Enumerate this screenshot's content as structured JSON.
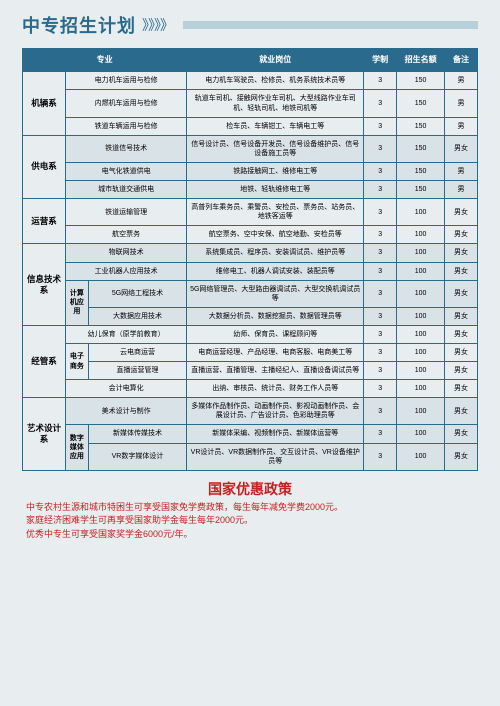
{
  "header": {
    "title": "中专招生计划",
    "arrows": "》》》》"
  },
  "columns": {
    "major": "专业",
    "job": "就业岗位",
    "duration": "学制",
    "quota": "招生名额",
    "note": "备注"
  },
  "depts": [
    {
      "name": "机辆系",
      "rows": [
        {
          "major": "电力机车运用与检修",
          "job": "电力机车驾驶员、检修员、机务系统技术员等",
          "dur": "3",
          "quota": "150",
          "note": "男",
          "gray": false
        },
        {
          "major": "内燃机车运用与检修",
          "job": "轨道车司机、接触网作业车司机、大型线路作业车司机、轻轨司机、地铁司机等",
          "dur": "3",
          "quota": "150",
          "note": "男",
          "gray": false
        },
        {
          "major": "铁道车辆运用与检修",
          "job": "检车员、车辆钳工、车辆电工等",
          "dur": "3",
          "quota": "150",
          "note": "男",
          "gray": false
        }
      ]
    },
    {
      "name": "供电系",
      "rows": [
        {
          "major": "铁道信号技术",
          "job": "信号设计员、信号设备开发员、信号设备维护员、信号设备施工员等",
          "dur": "3",
          "quota": "150",
          "note": "男女",
          "gray": true
        },
        {
          "major": "电气化铁道供电",
          "job": "铁路接触网工、维修电工等",
          "dur": "3",
          "quota": "150",
          "note": "男",
          "gray": true
        },
        {
          "major": "城市轨道交通供电",
          "job": "地铁、轻轨维修电工等",
          "dur": "3",
          "quota": "150",
          "note": "男",
          "gray": true
        }
      ]
    },
    {
      "name": "运营系",
      "rows": [
        {
          "major": "铁道运输管理",
          "job": "高普列车乘务员、乘警员、安检员、票务员、站务员、地铁客运等",
          "dur": "3",
          "quota": "100",
          "note": "男女",
          "gray": false
        },
        {
          "major": "航空票务",
          "job": "航空票务、空中安保、航空地勤、安检员等",
          "dur": "3",
          "quota": "100",
          "note": "男女",
          "gray": false
        }
      ]
    },
    {
      "name": "信息技术系",
      "subcol": "计算机应用",
      "subStart": 2,
      "rows": [
        {
          "major": "物联网技术",
          "job": "系统集成员、程序员、安装调试员、维护员等",
          "dur": "3",
          "quota": "100",
          "note": "男女",
          "gray": true
        },
        {
          "major": "工业机器人应用技术",
          "job": "维修电工、机器人调试安装、装配员等",
          "dur": "3",
          "quota": "100",
          "note": "男女",
          "gray": true
        },
        {
          "major": "5G网络工程技术",
          "job": "5G网络管理员、大型路由器调试员、大型交换机调试员等",
          "dur": "3",
          "quota": "100",
          "note": "男女",
          "gray": true,
          "sub": true
        },
        {
          "major": "大数据应用技术",
          "job": "大数据分析员、数据挖掘员、数据管理员等",
          "dur": "3",
          "quota": "100",
          "note": "男女",
          "gray": true,
          "sub": true
        }
      ]
    },
    {
      "name": "经管系",
      "subcol": "电子商务",
      "subStart": 1,
      "subLen": 2,
      "rows": [
        {
          "major": "幼儿保育（原学前教育）",
          "job": "幼师、保育员、课程顾问等",
          "dur": "3",
          "quota": "100",
          "note": "男女",
          "gray": false
        },
        {
          "major": "云电商运营",
          "job": "电商运营经理、产品经理、电商客服、电商美工等",
          "dur": "3",
          "quota": "100",
          "note": "男女",
          "gray": false,
          "sub": true
        },
        {
          "major": "直播运营管理",
          "job": "直播运营、直播管理、主播经纪人、直播设备调试员等",
          "dur": "3",
          "quota": "100",
          "note": "男女",
          "gray": false,
          "sub": true
        },
        {
          "major": "会计电算化",
          "job": "出纳、审核员、统计员、财务工作人员等",
          "dur": "3",
          "quota": "100",
          "note": "男女",
          "gray": false
        }
      ]
    },
    {
      "name": "艺术设计系",
      "subcol": "数字媒体应用",
      "subStart": 1,
      "rows": [
        {
          "major": "美术设计与制作",
          "job": "多媒体作品制作员、动画制作员、影视动画制作员、会展设计员、广告设计员、色彩助理员等",
          "dur": "3",
          "quota": "100",
          "note": "男女",
          "gray": true
        },
        {
          "major": "新媒体传媒技术",
          "job": "新媒体采编、视频制作员、新媒体运营等",
          "dur": "3",
          "quota": "100",
          "note": "男女",
          "gray": true,
          "sub": true
        },
        {
          "major": "VR数字媒体设计",
          "job": "VR设计员、VR数据制作员、交互设计员、VR设备维护员等",
          "dur": "3",
          "quota": "100",
          "note": "男女",
          "gray": true,
          "sub": true
        }
      ]
    }
  ],
  "policy": {
    "title": "国家优惠政策",
    "lines": [
      "中专农村生源和城市特困生可享受国家免学费政策，每生每年减免学费2000元。",
      "家庭经济困难学生可再享受国家助学金每生每年2000元。",
      "优秀中专生可享受国家奖学金6000元/年。"
    ]
  },
  "colors": {
    "primary": "#2a6a8c",
    "grayRow": "#d9e2e7",
    "bg": "#e8edf0",
    "red": "#c62020"
  }
}
